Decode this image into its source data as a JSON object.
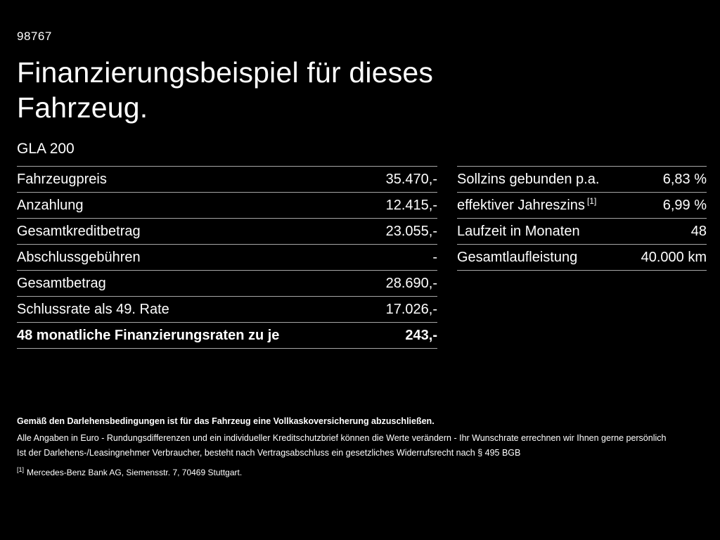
{
  "page": {
    "bg_color": "#000000",
    "text_color": "#ffffff",
    "divider_color": "#a6a6a6",
    "ref_number": "98767",
    "title": "Finanzierungsbeispiel für dieses Fahrzeug.",
    "model": "GLA 200"
  },
  "left_table": {
    "rows": [
      {
        "label": "Fahrzeugpreis",
        "value": "35.470,-"
      },
      {
        "label": "Anzahlung",
        "value": "12.415,-"
      },
      {
        "label": "Gesamtkreditbetrag",
        "value": "23.055,-"
      },
      {
        "label": "Abschlussgebühren",
        "value": "-"
      },
      {
        "label": "Gesamtbetrag",
        "value": "28.690,-"
      },
      {
        "label": "Schlussrate als 49. Rate",
        "value": "17.026,-"
      },
      {
        "label": "48 monatliche Finanzierungsraten zu je",
        "value": "243,-"
      }
    ]
  },
  "right_table": {
    "rows": [
      {
        "label": "Sollzins gebunden p.a.",
        "value": "6,83 %"
      },
      {
        "label": "effektiver Jahreszins",
        "label_sup": "[1]",
        "value": "6,99 %"
      },
      {
        "label": "Laufzeit in Monaten",
        "value": "48"
      },
      {
        "label": "Gesamtlaufleistung",
        "value": "40.000 km"
      }
    ]
  },
  "footnotes": {
    "insurance_bold": "Gemäß den Darlehensbedingungen ist für das Fahrzeug eine Vollkaskoversicherung abzuschließen.",
    "line1": "Alle Angaben in Euro - Rundungsdifferenzen und ein individueller Kreditschutzbrief können die Werte verändern - Ihr Wunschrate errechnen wir Ihnen gerne persönlich",
    "line2": "Ist der Darlehens-/Leasingnehmer Verbraucher, besteht nach Vertragsabschluss ein gesetzliches Widerrufsrecht nach § 495 BGB",
    "bank_ref_sup": "[1]",
    "bank_ref": "Mercedes-Benz Bank AG, Siemensstr. 7, 70469 Stuttgart."
  }
}
